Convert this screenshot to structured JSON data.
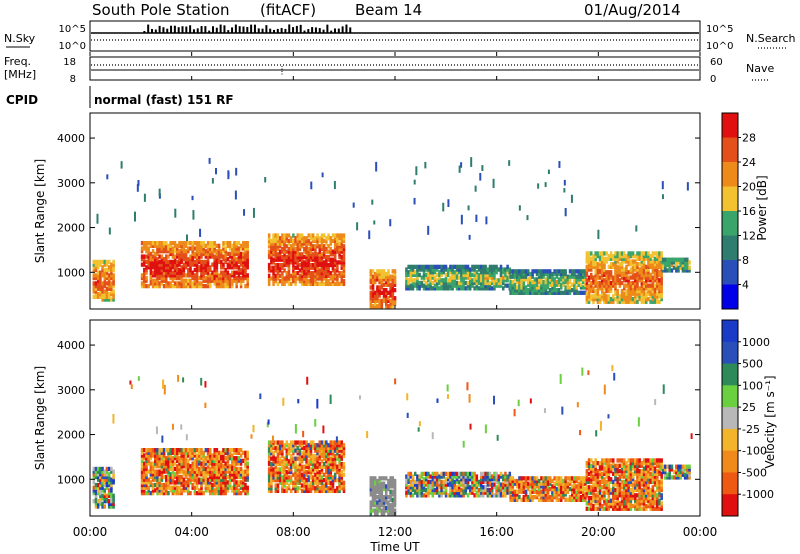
{
  "header": {
    "station": "South Pole Station",
    "mode": "(fitACF)",
    "beam": "Beam 14",
    "date": "01/Aug/2014"
  },
  "panels": {
    "nsky": {
      "left_label": "N.Sky",
      "right_label": "N.Search",
      "left_ticks": [
        "10^5",
        "10^0"
      ],
      "right_ticks": [
        "10^5",
        "10^0"
      ]
    },
    "freq": {
      "left_label_1": "Freq.",
      "left_label_2": "[MHz]",
      "right_label": "Nave",
      "left_ticks": [
        "18",
        "8"
      ],
      "right_ticks": [
        "60",
        "0"
      ]
    },
    "cpid": {
      "label": "CPID",
      "text": "normal (fast) 151 RF"
    }
  },
  "colors": {
    "power_scale": [
      "#0000e8",
      "#2a4fb8",
      "#2f7d6e",
      "#3aa56a",
      "#f2c230",
      "#ee8a1a",
      "#e4501a",
      "#e01010"
    ],
    "velocity_scale": [
      "#e01010",
      "#ee5a14",
      "#f08a1a",
      "#f2b42a",
      "#b8b8b8",
      "#6ad040",
      "#2f8a5a",
      "#2a4fb8",
      "#1a3ac8"
    ],
    "ground_scatter": "#8c8c8c"
  },
  "chart_data": [
    {
      "type": "heatmap",
      "name": "power",
      "ylabel": "Slant Range [km]",
      "yticks": [
        "4000",
        "3000",
        "2000",
        "1000"
      ],
      "ylim": [
        180,
        4560
      ],
      "xlim_hours": [
        0,
        24
      ],
      "colorbar": {
        "label": "Power [dB]",
        "ticks": [
          "28",
          "24",
          "20",
          "16",
          "12",
          "8",
          "4"
        ],
        "range": [
          0,
          32
        ]
      },
      "blobs": [
        {
          "t0": 0.1,
          "t1": 0.9,
          "r0": 350,
          "r1": 1250,
          "level": "med"
        },
        {
          "t0": 2.0,
          "t1": 6.2,
          "r0": 650,
          "r1": 1650,
          "level": "high"
        },
        {
          "t0": 7.0,
          "t1": 10.0,
          "r0": 700,
          "r1": 1800,
          "level": "high"
        },
        {
          "t0": 11.0,
          "t1": 12.0,
          "r0": 200,
          "r1": 1000,
          "level": "high"
        },
        {
          "t0": 12.4,
          "t1": 16.5,
          "r0": 600,
          "r1": 1100,
          "level": "low"
        },
        {
          "t0": 16.5,
          "t1": 19.5,
          "r0": 500,
          "r1": 1000,
          "level": "low"
        },
        {
          "t0": 19.5,
          "t1": 22.5,
          "r0": 300,
          "r1": 1400,
          "level": "med"
        },
        {
          "t0": 22.5,
          "t1": 23.6,
          "r0": 1000,
          "r1": 1300,
          "level": "low"
        }
      ]
    },
    {
      "type": "heatmap",
      "name": "velocity",
      "ylabel": "Slant Range [km]",
      "xlabel": "Time UT",
      "yticks": [
        "4000",
        "3000",
        "2000",
        "1000"
      ],
      "xticks": [
        "00:00",
        "04:00",
        "08:00",
        "12:00",
        "16:00",
        "20:00",
        "00:00"
      ],
      "ylim": [
        180,
        4560
      ],
      "xlim_hours": [
        0,
        24
      ],
      "colorbar": {
        "label": "Velocity [m s⁻¹]",
        "ticks": [
          "1000",
          "500",
          "100",
          "25",
          "-25",
          "-100",
          "-500",
          "-1000"
        ],
        "range": [
          -1200,
          1200
        ]
      },
      "blobs": [
        {
          "t0": 0.1,
          "t1": 0.9,
          "r0": 350,
          "r1": 1250,
          "level": "mixed"
        },
        {
          "t0": 2.0,
          "t1": 6.2,
          "r0": 650,
          "r1": 1650,
          "level": "neg"
        },
        {
          "t0": 7.0,
          "t1": 10.0,
          "r0": 700,
          "r1": 1800,
          "level": "neg"
        },
        {
          "t0": 11.0,
          "t1": 12.0,
          "r0": 200,
          "r1": 1000,
          "level": "ground"
        },
        {
          "t0": 12.4,
          "t1": 16.5,
          "r0": 600,
          "r1": 1100,
          "level": "mixed"
        },
        {
          "t0": 16.5,
          "t1": 19.5,
          "r0": 500,
          "r1": 1000,
          "level": "neg"
        },
        {
          "t0": 19.5,
          "t1": 22.5,
          "r0": 300,
          "r1": 1400,
          "level": "neg"
        },
        {
          "t0": 22.5,
          "t1": 23.6,
          "r0": 1000,
          "r1": 1300,
          "level": "mixed"
        }
      ]
    }
  ]
}
